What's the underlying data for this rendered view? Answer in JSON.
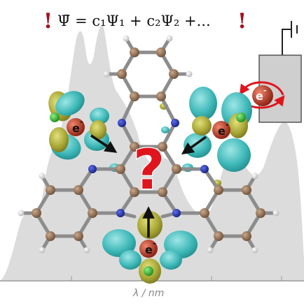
{
  "equation": {
    "left_bang": "!",
    "text": "Ψ̄ = c₁Ψ₁ + c₂Ψ₂ +...",
    "right_bang": "!"
  },
  "electrode": {
    "electron_symbol": "e",
    "electron_charge": "-"
  },
  "molecule": {
    "electron_symbol": "e",
    "electron_charge": "-",
    "question": "?"
  },
  "spectrum": {
    "axis_label": "λ / nm"
  },
  "colors": {
    "carbon": "#8a6a4f",
    "nitrogen": "#2434b8",
    "hydrogen": "#f2f2f2",
    "chlorine": "#2fbf2a",
    "iron": "#c8402a",
    "orbital_cyan": "#3db7b7",
    "orbital_olive": "#a6a534",
    "question_red": "#e0141c",
    "bang_red": "#a3101a"
  }
}
